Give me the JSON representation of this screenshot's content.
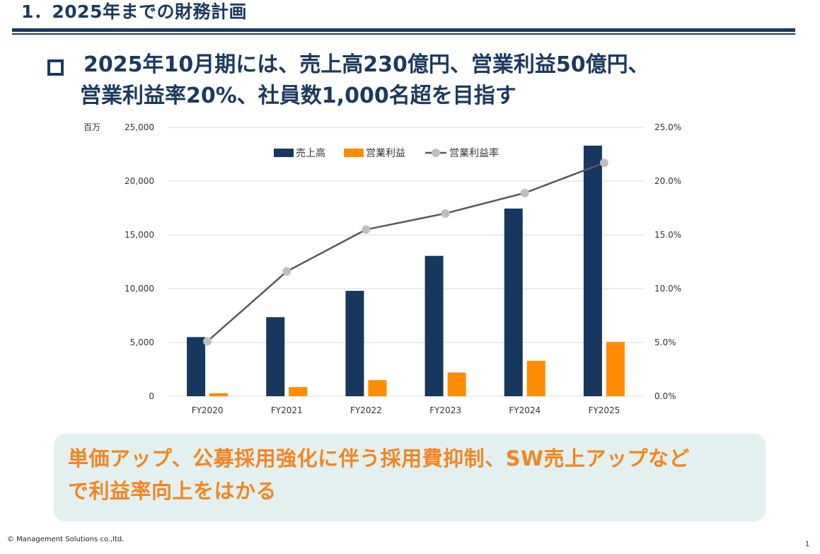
{
  "page": {
    "title": "1．2025年までの財務計画",
    "headline_line1": "2025年10月期には、売上高230億円、営業利益50億円、",
    "headline_line2": "営業利益率20%、社員数1,000名超を目指す",
    "callout_line1": "単価アップ、公募採用強化に伴う採用費抑制、SW売上アップなど",
    "callout_line2": "で利益率向上をはかる",
    "copyright": "© Management Solutions co.,ltd.",
    "page_number": "1"
  },
  "chart_data": {
    "type": "bar",
    "categories": [
      "FY2020",
      "FY2021",
      "FY2022",
      "FY2023",
      "FY2024",
      "FY2025"
    ],
    "unit_label": "百万",
    "y_left": {
      "min": 0,
      "max": 25000,
      "ticks": [
        "0",
        "5,000",
        "10,000",
        "15,000",
        "20,000",
        "25,000"
      ]
    },
    "y_right": {
      "min": 0,
      "max": 25,
      "ticks": [
        "0.0%",
        "5.0%",
        "10.0%",
        "15.0%",
        "20.0%",
        "25.0%"
      ]
    },
    "series": [
      {
        "name": "売上高",
        "type": "bar",
        "axis": "left",
        "color": "#17375e",
        "values": [
          5500,
          7350,
          9800,
          13050,
          17450,
          23300
        ]
      },
      {
        "name": "営業利益",
        "type": "bar",
        "axis": "left",
        "color": "#ff8c00",
        "values": [
          280,
          850,
          1500,
          2200,
          3300,
          5050
        ]
      },
      {
        "name": "営業利益率",
        "type": "line",
        "axis": "right",
        "color": "#595959",
        "marker_color": "#bfbfbf",
        "values": [
          5.1,
          11.6,
          15.5,
          17.0,
          18.9,
          21.7
        ]
      }
    ],
    "legend": "top-center",
    "grid": true
  },
  "colors": {
    "navy": "#1b3a60",
    "orange": "#f5851f",
    "callout_bg": "#e2f1f0"
  }
}
